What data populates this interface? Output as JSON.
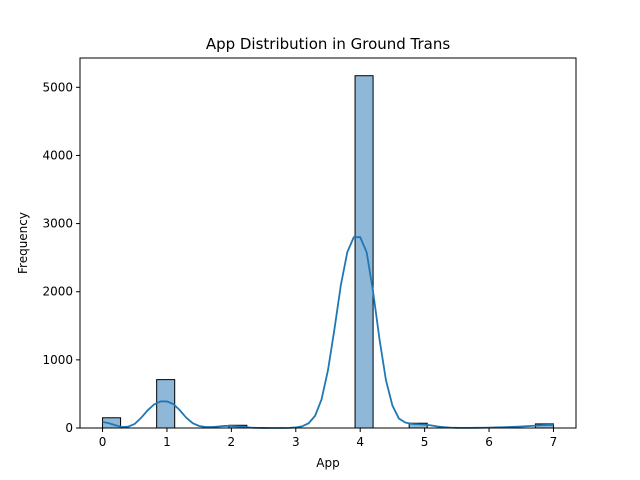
{
  "chart_data": {
    "type": "bar",
    "title": "App Distribution in Ground Trans",
    "xlabel": "App",
    "ylabel": "Frequency",
    "xlim": [
      -0.35,
      7.35
    ],
    "ylim": [
      0,
      5430
    ],
    "xticks": [
      0,
      1,
      2,
      3,
      4,
      5,
      6,
      7
    ],
    "yticks": [
      0,
      1000,
      2000,
      3000,
      4000,
      5000
    ],
    "bin_width": 0.28,
    "bars": [
      {
        "x0": 0.0,
        "value": 150
      },
      {
        "x0": 0.28,
        "value": 0
      },
      {
        "x0": 0.56,
        "value": 0
      },
      {
        "x0": 0.84,
        "value": 710
      },
      {
        "x0": 1.12,
        "value": 0
      },
      {
        "x0": 1.4,
        "value": 0
      },
      {
        "x0": 1.68,
        "value": 0
      },
      {
        "x0": 1.96,
        "value": 40
      },
      {
        "x0": 2.24,
        "value": 0
      },
      {
        "x0": 2.52,
        "value": 0
      },
      {
        "x0": 2.8,
        "value": 0
      },
      {
        "x0": 3.08,
        "value": 0
      },
      {
        "x0": 3.36,
        "value": 0
      },
      {
        "x0": 3.64,
        "value": 0
      },
      {
        "x0": 3.92,
        "value": 5170
      },
      {
        "x0": 4.2,
        "value": 0
      },
      {
        "x0": 4.48,
        "value": 0
      },
      {
        "x0": 4.76,
        "value": 70
      },
      {
        "x0": 5.04,
        "value": 0
      },
      {
        "x0": 5.32,
        "value": 0
      },
      {
        "x0": 5.6,
        "value": 0
      },
      {
        "x0": 5.88,
        "value": 0
      },
      {
        "x0": 6.16,
        "value": 0
      },
      {
        "x0": 6.44,
        "value": 0
      },
      {
        "x0": 6.72,
        "value": 60
      }
    ],
    "kde": {
      "x": [
        0,
        0.1,
        0.2,
        0.3,
        0.4,
        0.5,
        0.6,
        0.7,
        0.8,
        0.9,
        1.0,
        1.1,
        1.2,
        1.3,
        1.4,
        1.5,
        1.6,
        1.7,
        1.8,
        1.9,
        2.0,
        2.1,
        2.2,
        2.3,
        2.4,
        2.5,
        2.6,
        2.7,
        2.8,
        2.9,
        3.0,
        3.1,
        3.2,
        3.3,
        3.4,
        3.5,
        3.6,
        3.7,
        3.8,
        3.9,
        4.0,
        4.1,
        4.2,
        4.3,
        4.4,
        4.5,
        4.6,
        4.7,
        4.8,
        4.9,
        5.0,
        5.1,
        5.2,
        5.3,
        5.4,
        5.5,
        5.6,
        5.7,
        5.8,
        5.9,
        6.0,
        6.1,
        6.2,
        6.3,
        6.4,
        6.5,
        6.6,
        6.7,
        6.8,
        6.9,
        7.0
      ],
      "y": [
        90,
        70,
        40,
        15,
        20,
        60,
        150,
        260,
        345,
        390,
        390,
        350,
        260,
        150,
        70,
        30,
        15,
        15,
        22,
        30,
        30,
        25,
        15,
        5,
        2,
        1,
        0,
        0,
        0,
        2,
        8,
        25,
        70,
        180,
        420,
        850,
        1450,
        2100,
        2580,
        2800,
        2800,
        2580,
        2000,
        1300,
        700,
        330,
        140,
        80,
        60,
        55,
        50,
        38,
        22,
        12,
        6,
        3,
        2,
        2,
        3,
        4,
        6,
        8,
        10,
        14,
        18,
        22,
        27,
        33,
        40,
        45,
        45
      ]
    },
    "colors": {
      "bar_fill": "#8fb8d8",
      "bar_edge": "#000000",
      "kde_line": "#1f77b4"
    },
    "grid": false,
    "legend": "none"
  }
}
